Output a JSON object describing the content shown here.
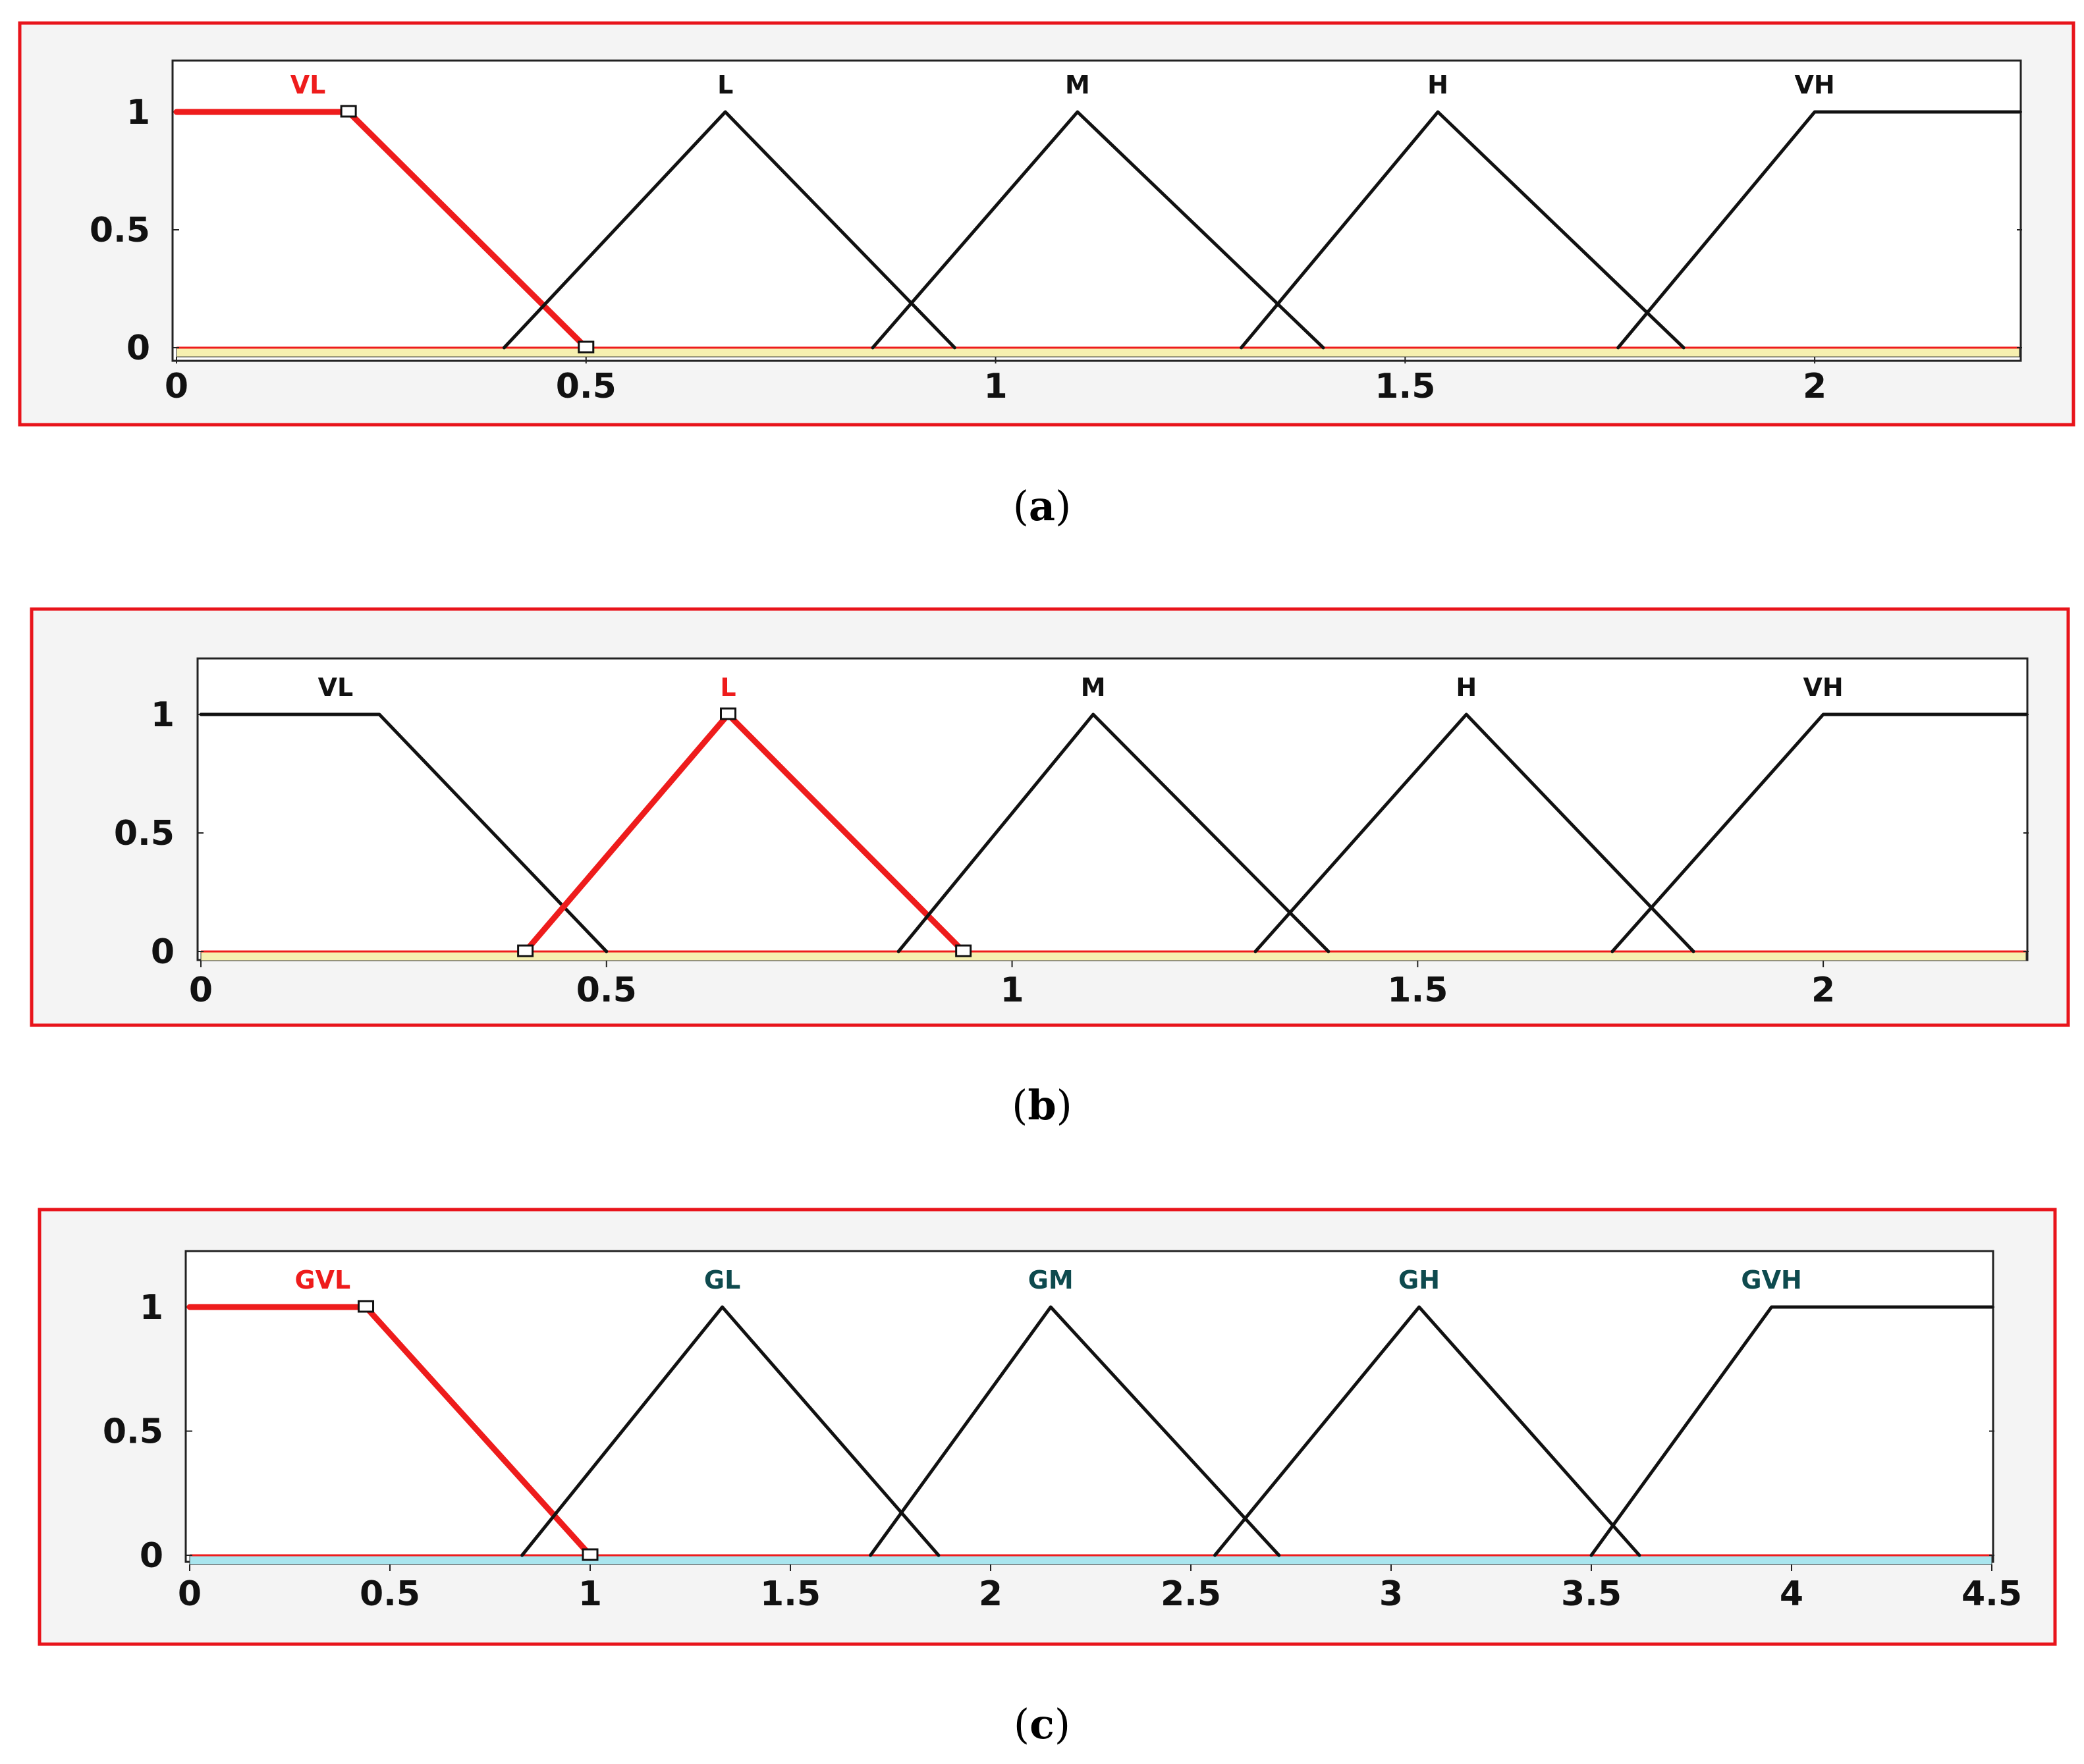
{
  "colors": {
    "frame": "#e8141b",
    "selected_curve": "#ee1c1c",
    "curve": "#111111",
    "label_normal": "#111111",
    "label_selected": "#ee1c1c",
    "label_teal": "#0e4a4e",
    "band_yellow": "#f6f0b0",
    "band_cyan": "#a9e5ee"
  },
  "chart_data": [
    {
      "type": "line",
      "caption_letter": "a",
      "xlim": [
        0,
        2.25
      ],
      "ylim": [
        0,
        1
      ],
      "x_ticks": [
        0,
        0.5,
        1,
        1.5,
        2
      ],
      "x_tick_labels": [
        "0",
        "0.5",
        "1",
        "1.5",
        "2"
      ],
      "y_ticks": [
        0,
        0.5,
        1
      ],
      "y_tick_labels": [
        "0",
        "0.5",
        "1"
      ],
      "band": "yellow",
      "selected": "VL",
      "series": [
        {
          "name": "VL",
          "x": [
            0,
            0.21,
            0.5
          ],
          "y": [
            1,
            1,
            0
          ]
        },
        {
          "name": "L",
          "x": [
            0.4,
            0.67,
            0.95
          ],
          "y": [
            0,
            1,
            0
          ]
        },
        {
          "name": "M",
          "x": [
            0.85,
            1.1,
            1.4
          ],
          "y": [
            0,
            1,
            0
          ]
        },
        {
          "name": "H",
          "x": [
            1.3,
            1.54,
            1.84
          ],
          "y": [
            0,
            1,
            0
          ]
        },
        {
          "name": "VH",
          "x": [
            1.76,
            2.0,
            2.25
          ],
          "y": [
            0,
            1,
            1
          ]
        }
      ]
    },
    {
      "type": "line",
      "caption_letter": "b",
      "xlim": [
        0,
        2.25
      ],
      "ylim": [
        0,
        1
      ],
      "x_ticks": [
        0,
        0.5,
        1,
        1.5,
        2
      ],
      "x_tick_labels": [
        "0",
        "0.5",
        "1",
        "1.5",
        "2"
      ],
      "y_ticks": [
        0,
        0.5,
        1
      ],
      "y_tick_labels": [
        "0",
        "0.5",
        "1"
      ],
      "band": "yellow",
      "selected": "L",
      "series": [
        {
          "name": "VL",
          "x": [
            0,
            0.22,
            0.5
          ],
          "y": [
            1,
            1,
            0
          ]
        },
        {
          "name": "L",
          "x": [
            0.4,
            0.65,
            0.94
          ],
          "y": [
            0,
            1,
            0
          ]
        },
        {
          "name": "M",
          "x": [
            0.86,
            1.1,
            1.39
          ],
          "y": [
            0,
            1,
            0
          ]
        },
        {
          "name": "H",
          "x": [
            1.3,
            1.56,
            1.84
          ],
          "y": [
            0,
            1,
            0
          ]
        },
        {
          "name": "VH",
          "x": [
            1.74,
            2.0,
            2.25
          ],
          "y": [
            0,
            1,
            1
          ]
        }
      ]
    },
    {
      "type": "line",
      "caption_letter": "c",
      "xlim": [
        0,
        4.5
      ],
      "ylim": [
        0,
        1
      ],
      "x_ticks": [
        0,
        0.5,
        1,
        1.5,
        2,
        2.5,
        3,
        3.5,
        4,
        4.5
      ],
      "x_tick_labels": [
        "0",
        "0.5",
        "1",
        "1.5",
        "2",
        "2.5",
        "3",
        "3.5",
        "4",
        "4.5"
      ],
      "y_ticks": [
        0,
        0.5,
        1
      ],
      "y_tick_labels": [
        "0",
        "0.5",
        "1"
      ],
      "band": "cyan",
      "selected": "GVL",
      "series": [
        {
          "name": "GVL",
          "x": [
            0,
            0.44,
            1.0
          ],
          "y": [
            1,
            1,
            0
          ]
        },
        {
          "name": "GL",
          "x": [
            0.83,
            1.33,
            1.87
          ],
          "y": [
            0,
            1,
            0
          ]
        },
        {
          "name": "GM",
          "x": [
            1.7,
            2.15,
            2.72
          ],
          "y": [
            0,
            1,
            0
          ]
        },
        {
          "name": "GH",
          "x": [
            2.56,
            3.07,
            3.62
          ],
          "y": [
            0,
            1,
            0
          ]
        },
        {
          "name": "GVH",
          "x": [
            3.5,
            3.95,
            4.5
          ],
          "y": [
            0,
            1,
            1
          ]
        }
      ]
    }
  ]
}
